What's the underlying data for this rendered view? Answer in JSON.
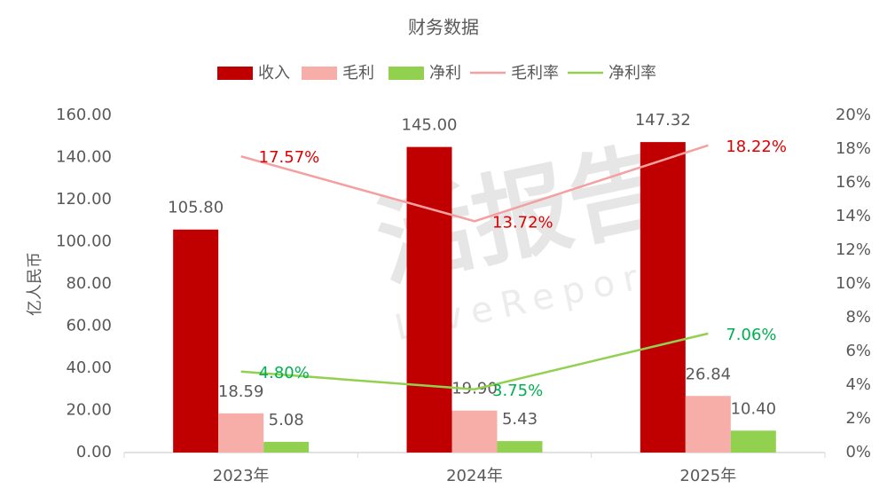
{
  "chart_data": {
    "type": "bar",
    "title": "财务数据",
    "ylabel": "亿人民币",
    "watermark": [
      "活报告",
      "LiveReport"
    ],
    "categories": [
      "2023年",
      "2024年",
      "2025年"
    ],
    "series": [
      {
        "name": "收入",
        "type": "bar",
        "color": "#c00000",
        "values": [
          105.8,
          145,
          147.32
        ],
        "value_labels": [
          "105.80",
          "145.00",
          "147.32"
        ]
      },
      {
        "name": "毛利",
        "type": "bar",
        "color": "#f8aea8",
        "values": [
          18.59,
          19.9,
          26.84
        ],
        "value_labels": [
          "18.59",
          "19.90",
          "26.84"
        ]
      },
      {
        "name": "净利",
        "type": "bar",
        "color": "#92d050",
        "values": [
          5.08,
          5.43,
          10.4
        ],
        "value_labels": [
          "5.08",
          "5.43",
          "10.40"
        ]
      },
      {
        "name": "毛利率",
        "type": "line",
        "axis": "y2",
        "color": "#f4a0a0",
        "label_color": "#e00000",
        "values": [
          17.57,
          13.72,
          18.22
        ],
        "value_labels": [
          "17.57%",
          "13.72%",
          "18.22%"
        ]
      },
      {
        "name": "净利率",
        "type": "line",
        "axis": "y2",
        "color": "#92d050",
        "label_color": "#00b050",
        "values": [
          4.8,
          3.75,
          7.06
        ],
        "value_labels": [
          "4.80%",
          "3.75%",
          "7.06%"
        ]
      }
    ],
    "ylim": [
      0,
      160
    ],
    "yticks": [
      {
        "value": 0,
        "label": "0.00"
      },
      {
        "value": 20,
        "label": "20.00"
      },
      {
        "value": 40,
        "label": "40.00"
      },
      {
        "value": 60,
        "label": "60.00"
      },
      {
        "value": 80,
        "label": "80.00"
      },
      {
        "value": 100,
        "label": "100.00"
      },
      {
        "value": 120,
        "label": "120.00"
      },
      {
        "value": 140,
        "label": "140.00"
      },
      {
        "value": 160,
        "label": "160.00"
      }
    ],
    "y2lim": [
      0,
      20
    ],
    "y2ticks": [
      {
        "value": 0,
        "label": "0%"
      },
      {
        "value": 2,
        "label": "2%"
      },
      {
        "value": 4,
        "label": "4%"
      },
      {
        "value": 6,
        "label": "6%"
      },
      {
        "value": 8,
        "label": "8%"
      },
      {
        "value": 10,
        "label": "10%"
      },
      {
        "value": 12,
        "label": "12%"
      },
      {
        "value": 14,
        "label": "14%"
      },
      {
        "value": 16,
        "label": "16%"
      },
      {
        "value": 18,
        "label": "18%"
      },
      {
        "value": 20,
        "label": "20%"
      }
    ],
    "grid": false
  }
}
